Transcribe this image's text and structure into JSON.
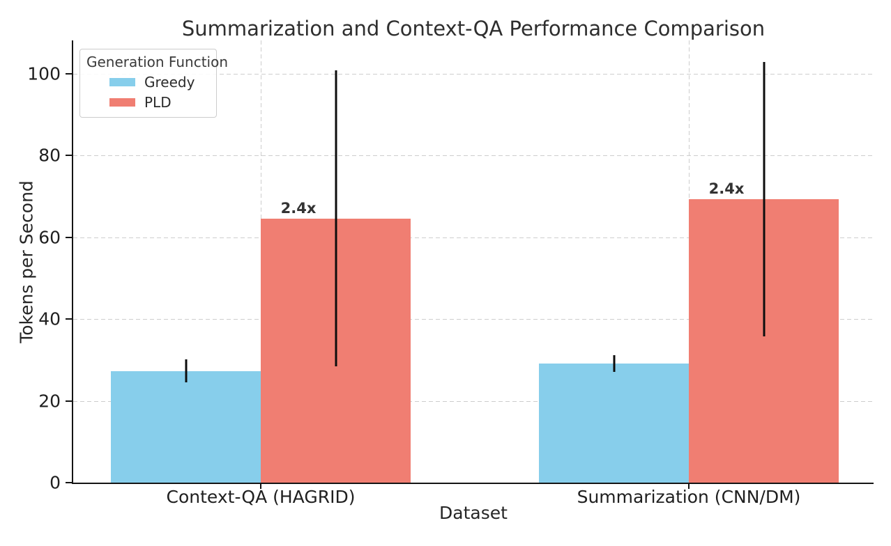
{
  "chart_data": {
    "type": "bar",
    "title": "Summarization and Context-QA Performance Comparison",
    "xlabel": "Dataset",
    "ylabel": "Tokens per Second",
    "categories": [
      "Context-QA (HAGRID)",
      "Summarization (CNN/DM)"
    ],
    "series": [
      {
        "name": "Greedy",
        "color": "#87CEEB",
        "values": [
          27.3,
          29.1
        ],
        "errors": [
          2.8,
          2.0
        ]
      },
      {
        "name": "PLD",
        "color": "#F07E72",
        "values": [
          64.6,
          69.3
        ],
        "errors": [
          36.2,
          33.6
        ]
      }
    ],
    "speedup_labels": [
      "2.4x",
      "2.4x"
    ],
    "legend_title": "Generation Function",
    "legend_position": "upper left",
    "yticks": [
      0,
      20,
      40,
      60,
      80,
      100
    ],
    "ylim": [
      0,
      108
    ],
    "grid": "dashed",
    "error_bars": true,
    "error_bar_color": "#0d0d0d",
    "text_color": "#262626"
  }
}
